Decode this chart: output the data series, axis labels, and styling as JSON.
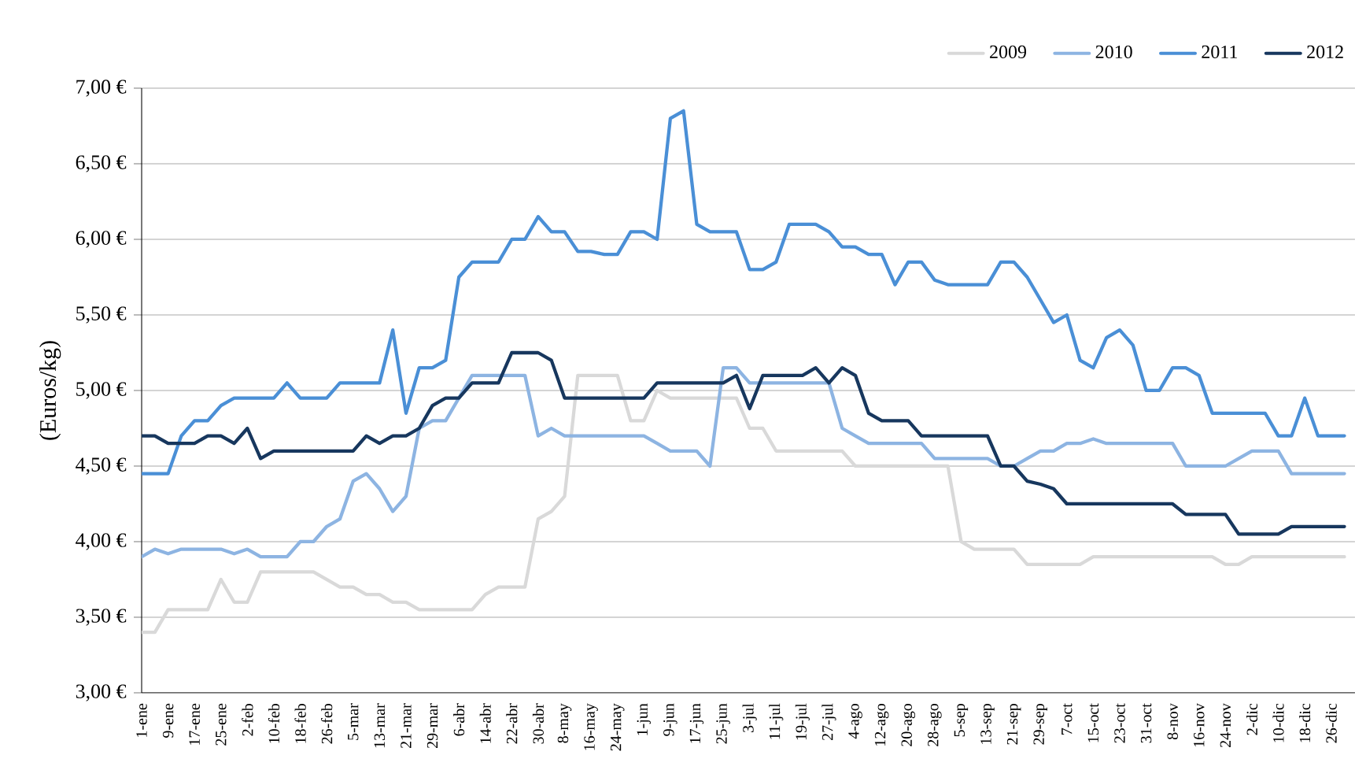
{
  "chart_data": {
    "type": "line",
    "ylabel": "(Euros/kg)",
    "categories": [
      "1-ene",
      null,
      "9-ene",
      null,
      "17-ene",
      null,
      "25-ene",
      null,
      "2-feb",
      null,
      "10-feb",
      null,
      "18-feb",
      null,
      "26-feb",
      null,
      "5-mar",
      null,
      "13-mar",
      null,
      "21-mar",
      null,
      "29-mar",
      null,
      "6-abr",
      null,
      "14-abr",
      null,
      "22-abr",
      null,
      "30-abr",
      null,
      "8-may",
      null,
      "16-may",
      null,
      "24-may",
      null,
      "1-jun",
      null,
      "9-jun",
      null,
      "17-jun",
      null,
      "25-jun",
      null,
      "3-jul",
      null,
      "11-jul",
      null,
      "19-jul",
      null,
      "27-jul",
      null,
      "4-ago",
      null,
      "12-ago",
      null,
      "20-ago",
      null,
      "28-ago",
      null,
      "5-sep",
      null,
      "13-sep",
      null,
      "21-sep",
      null,
      "29-sep",
      null,
      "7-oct",
      null,
      "15-oct",
      null,
      "23-oct",
      null,
      "31-oct",
      null,
      "8-nov",
      null,
      "16-nov",
      null,
      "24-nov",
      null,
      "2-dic",
      null,
      "10-dic",
      null,
      "18-dic",
      null,
      "26-dic",
      null
    ],
    "series": [
      {
        "name": "2009",
        "color": "#d9d9d9",
        "values": [
          3.4,
          3.4,
          3.55,
          3.55,
          3.55,
          3.55,
          3.75,
          3.6,
          3.6,
          3.8,
          3.8,
          3.8,
          3.8,
          3.8,
          3.75,
          3.7,
          3.7,
          3.65,
          3.65,
          3.6,
          3.6,
          3.55,
          3.55,
          3.55,
          3.55,
          3.55,
          3.65,
          3.7,
          3.7,
          3.7,
          4.15,
          4.2,
          4.3,
          5.1,
          5.1,
          5.1,
          5.1,
          4.8,
          4.8,
          5.0,
          4.95,
          4.95,
          4.95,
          4.95,
          4.95,
          4.95,
          4.75,
          4.75,
          4.6,
          4.6,
          4.6,
          4.6,
          4.6,
          4.6,
          4.5,
          4.5,
          4.5,
          4.5,
          4.5,
          4.5,
          4.5,
          4.5,
          4.0,
          3.95,
          3.95,
          3.95,
          3.95,
          3.85,
          3.85,
          3.85,
          3.85,
          3.85,
          3.9,
          3.9,
          3.9,
          3.9,
          3.9,
          3.9,
          3.9,
          3.9,
          3.9,
          3.9,
          3.85,
          3.85,
          3.9,
          3.9,
          3.9,
          3.9,
          3.9,
          3.9,
          3.9,
          3.9
        ]
      },
      {
        "name": "2010",
        "color": "#8db4e2",
        "values": [
          3.9,
          3.95,
          3.92,
          3.95,
          3.95,
          3.95,
          3.95,
          3.92,
          3.95,
          3.9,
          3.9,
          3.9,
          4.0,
          4.0,
          4.1,
          4.15,
          4.4,
          4.45,
          4.35,
          4.2,
          4.3,
          4.75,
          4.8,
          4.8,
          4.95,
          5.1,
          5.1,
          5.1,
          5.1,
          5.1,
          4.7,
          4.75,
          4.7,
          4.7,
          4.7,
          4.7,
          4.7,
          4.7,
          4.7,
          4.65,
          4.6,
          4.6,
          4.6,
          4.5,
          5.15,
          5.15,
          5.05,
          5.05,
          5.05,
          5.05,
          5.05,
          5.05,
          5.05,
          4.75,
          4.7,
          4.65,
          4.65,
          4.65,
          4.65,
          4.65,
          4.55,
          4.55,
          4.55,
          4.55,
          4.55,
          4.5,
          4.5,
          4.55,
          4.6,
          4.6,
          4.65,
          4.65,
          4.68,
          4.65,
          4.65,
          4.65,
          4.65,
          4.65,
          4.65,
          4.5,
          4.5,
          4.5,
          4.5,
          4.55,
          4.6,
          4.6,
          4.6,
          4.45,
          4.45,
          4.45,
          4.45,
          4.45
        ]
      },
      {
        "name": "2011",
        "color": "#4a8fd6",
        "values": [
          4.45,
          4.45,
          4.45,
          4.7,
          4.8,
          4.8,
          4.9,
          4.95,
          4.95,
          4.95,
          4.95,
          5.05,
          4.95,
          4.95,
          4.95,
          5.05,
          5.05,
          5.05,
          5.05,
          5.4,
          4.85,
          5.15,
          5.15,
          5.2,
          5.75,
          5.85,
          5.85,
          5.85,
          6.0,
          6.0,
          6.15,
          6.05,
          6.05,
          5.92,
          5.92,
          5.9,
          5.9,
          6.05,
          6.05,
          6.0,
          6.8,
          6.85,
          6.1,
          6.05,
          6.05,
          6.05,
          5.8,
          5.8,
          5.85,
          6.1,
          6.1,
          6.1,
          6.05,
          5.95,
          5.95,
          5.9,
          5.9,
          5.7,
          5.85,
          5.85,
          5.73,
          5.7,
          5.7,
          5.7,
          5.7,
          5.85,
          5.85,
          5.75,
          5.6,
          5.45,
          5.5,
          5.2,
          5.15,
          5.35,
          5.4,
          5.3,
          5.0,
          5.0,
          5.15,
          5.15,
          5.1,
          4.85,
          4.85,
          4.85,
          4.85,
          4.85,
          4.7,
          4.7,
          4.95,
          4.7,
          4.7,
          4.7
        ]
      },
      {
        "name": "2012",
        "color": "#17375e",
        "values": [
          4.7,
          4.7,
          4.65,
          4.65,
          4.65,
          4.7,
          4.7,
          4.65,
          4.75,
          4.55,
          4.6,
          4.6,
          4.6,
          4.6,
          4.6,
          4.6,
          4.6,
          4.7,
          4.65,
          4.7,
          4.7,
          4.75,
          4.9,
          4.95,
          4.95,
          5.05,
          5.05,
          5.05,
          5.25,
          5.25,
          5.25,
          5.2,
          4.95,
          4.95,
          4.95,
          4.95,
          4.95,
          4.95,
          4.95,
          5.05,
          5.05,
          5.05,
          5.05,
          5.05,
          5.05,
          5.1,
          4.88,
          5.1,
          5.1,
          5.1,
          5.1,
          5.15,
          5.05,
          5.15,
          5.1,
          4.85,
          4.8,
          4.8,
          4.8,
          4.7,
          4.7,
          4.7,
          4.7,
          4.7,
          4.7,
          4.5,
          4.5,
          4.4,
          4.38,
          4.35,
          4.25,
          4.25,
          4.25,
          4.25,
          4.25,
          4.25,
          4.25,
          4.25,
          4.25,
          4.18,
          4.18,
          4.18,
          4.18,
          4.05,
          4.05,
          4.05,
          4.05,
          4.1,
          4.1,
          4.1,
          4.1,
          4.1
        ]
      }
    ],
    "ylim": [
      3,
      7
    ],
    "yticks": [
      {
        "value": 3,
        "label": "3,00 €"
      },
      {
        "value": 3.5,
        "label": "3,50 €"
      },
      {
        "value": 4,
        "label": "4,00 €"
      },
      {
        "value": 4.5,
        "label": "4,50 €"
      },
      {
        "value": 5,
        "label": "5,00 €"
      },
      {
        "value": 5.5,
        "label": "5,50 €"
      },
      {
        "value": 6,
        "label": "6,00 €"
      },
      {
        "value": 6.5,
        "label": "6,50 €"
      },
      {
        "value": 7,
        "label": "7,00 €"
      }
    ],
    "grid": "y",
    "legend": "top right",
    "marker": "none",
    "line_style": "solid"
  }
}
